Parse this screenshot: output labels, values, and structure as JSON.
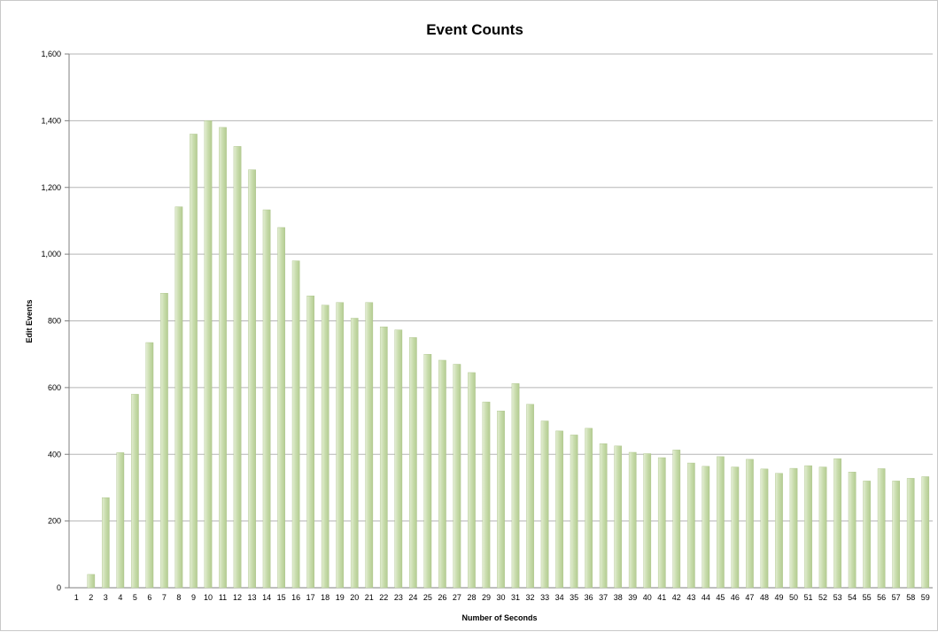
{
  "chart_data": {
    "type": "bar",
    "title": "Event Counts",
    "xlabel": "Number of Seconds",
    "ylabel": "Edit Events",
    "ylim": [
      0,
      1600
    ],
    "yticks": [
      0,
      200,
      400,
      600,
      800,
      1000,
      1200,
      1400,
      1600
    ],
    "ytick_labels": [
      "0",
      "200",
      "400",
      "600",
      "800",
      "1,000",
      "1,200",
      "1,400",
      "1,600"
    ],
    "grid": true,
    "legend": "none",
    "bar_color": "#c8dcac",
    "categories": [
      "1",
      "2",
      "3",
      "4",
      "5",
      "6",
      "7",
      "8",
      "9",
      "10",
      "11",
      "12",
      "13",
      "14",
      "15",
      "16",
      "17",
      "18",
      "19",
      "20",
      "21",
      "22",
      "23",
      "24",
      "25",
      "26",
      "27",
      "28",
      "29",
      "30",
      "31",
      "32",
      "33",
      "34",
      "35",
      "36",
      "37",
      "38",
      "39",
      "40",
      "41",
      "42",
      "43",
      "44",
      "45",
      "46",
      "47",
      "48",
      "49",
      "50",
      "51",
      "52",
      "53",
      "54",
      "55",
      "56",
      "57",
      "58",
      "59"
    ],
    "values": [
      0,
      40,
      270,
      405,
      580,
      735,
      883,
      1142,
      1360,
      1400,
      1380,
      1323,
      1253,
      1133,
      1080,
      980,
      875,
      847,
      855,
      808,
      855,
      782,
      773,
      750,
      700,
      682,
      670,
      645,
      557,
      530,
      612,
      550,
      500,
      470,
      458,
      478,
      432,
      425,
      406,
      402,
      390,
      413,
      374,
      364,
      393,
      362,
      385,
      356,
      343,
      358,
      366,
      362,
      387,
      347,
      320,
      357,
      320,
      328,
      333
    ]
  }
}
